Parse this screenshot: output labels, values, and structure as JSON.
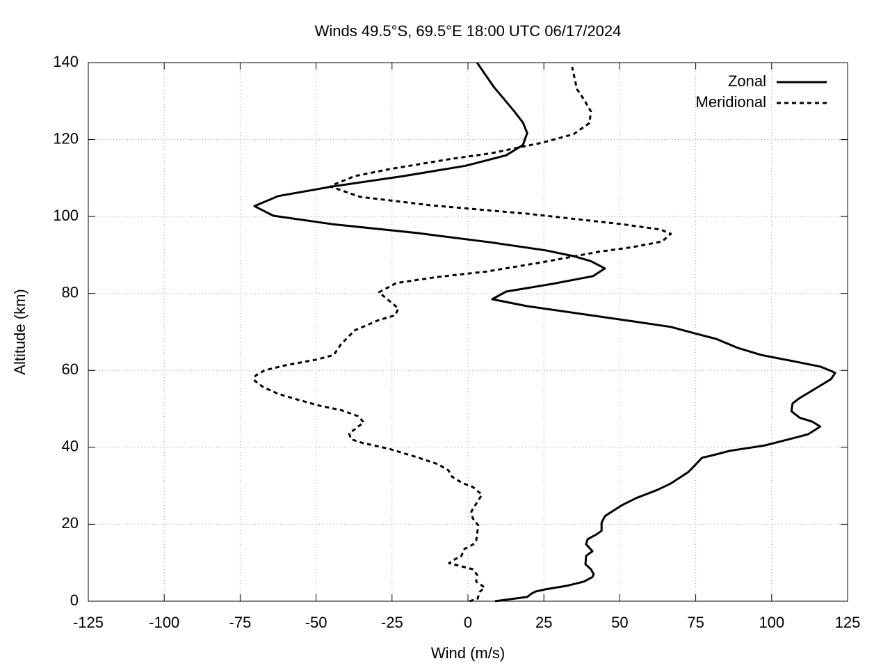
{
  "chart_data": {
    "type": "line",
    "title": "Winds 49.5°S, 69.5°E 18:00 UTC 06/17/2024",
    "xlabel": "Wind (m/s)",
    "ylabel": "Altitude (km)",
    "xlim": [
      -125,
      125
    ],
    "xticks": [
      -125,
      -100,
      -75,
      -50,
      -25,
      0,
      25,
      50,
      75,
      100,
      125
    ],
    "ylim": [
      0,
      140
    ],
    "yticks": [
      0,
      20,
      40,
      60,
      80,
      100,
      120,
      140
    ],
    "grid": true,
    "legend": "top-right",
    "series": [
      {
        "name": "Zonal",
        "color": "#000000",
        "dashed": false,
        "x": [
          8.9,
          19.5,
          21,
          22.2,
          25.6,
          32.5,
          38.2,
          41,
          41.4,
          40.5,
          38.7,
          38.9,
          41,
          38.9,
          39.4,
          42.4,
          44,
          44,
          45.1,
          47.4,
          50.8,
          55.4,
          62.3,
          66.8,
          70.7,
          72.6,
          73.7,
          76,
          77.1,
          79.9,
          86.3,
          97.8,
          105.8,
          112,
          116,
          113.3,
          109.2,
          106.5,
          106.9,
          109.2,
          119.5,
          120.9,
          120,
          116,
          107,
          96.6,
          89,
          81.7,
          75.3,
          66.8,
          53.1,
          19.5,
          8,
          12.6,
          27.9,
          41.2,
          45.1,
          40.5,
          34.8,
          25.6,
          7.3,
          -16.7,
          -44.6,
          -64.1,
          -70.3,
          -62.5,
          -44.6,
          -21.3,
          -0.7,
          12.6,
          18.1,
          19.5,
          18.1,
          15.3,
          8.5,
          3
        ],
        "y": [
          0,
          1.1,
          2,
          2.5,
          3.1,
          4,
          5.1,
          6.3,
          7,
          8.3,
          9.6,
          11.8,
          13,
          14.8,
          16.1,
          17.4,
          18.3,
          20.4,
          22.1,
          23.3,
          25,
          26.8,
          28.9,
          30.6,
          32.6,
          33.6,
          34.5,
          36.4,
          37.3,
          37.8,
          39.1,
          40.5,
          42.1,
          43.4,
          45.4,
          46.7,
          47.7,
          49.4,
          51.4,
          52.8,
          57.7,
          59.3,
          59.7,
          61,
          62.4,
          64,
          65.8,
          68.2,
          69.5,
          71.3,
          72.9,
          76.7,
          78.5,
          80.5,
          82.5,
          84.5,
          86.5,
          88.4,
          89.7,
          91.2,
          93.3,
          95.7,
          98,
          100.2,
          102.7,
          105.3,
          107.8,
          110.5,
          113.2,
          115.9,
          118.6,
          121.7,
          124.4,
          127.3,
          133.7,
          140
        ]
      },
      {
        "name": "Meridional",
        "color": "#000000",
        "dashed": true,
        "x": [
          0.5,
          3.2,
          3.9,
          5.5,
          2.7,
          3,
          1.6,
          -6.2,
          -4.1,
          -2.3,
          -1.1,
          1.6,
          2.7,
          3.4,
          1.6,
          1.1,
          4.6,
          1.6,
          -1.8,
          -5.3,
          -6.4,
          -9.8,
          -16.7,
          -25.9,
          -35,
          -38.5,
          -39.1,
          -34.3,
          -36.2,
          -41.9,
          -48.8,
          -55.6,
          -62.5,
          -67.5,
          -70.5,
          -70,
          -67,
          -60.2,
          -49.9,
          -44.2,
          -41.9,
          -37.3,
          -29.3,
          -24,
          -22.9,
          -29.3,
          -23.6,
          -9.8,
          6.2,
          24.5,
          42.8,
          53.8,
          63.9,
          66.8,
          63.4,
          50.8,
          19.9,
          -12.1,
          -35.5,
          -45.3,
          -44.2,
          -37.3,
          -25.9,
          -5.3,
          7.3,
          24.5,
          34.8,
          40,
          40.5,
          38.2,
          35.9,
          34.3
        ],
        "y": [
          0,
          0.7,
          2.4,
          3.6,
          5.1,
          6.9,
          8.3,
          9.9,
          11,
          11.6,
          13.6,
          14.7,
          15.6,
          19.7,
          21.5,
          23.3,
          27.7,
          29.7,
          30.7,
          32.4,
          34,
          35.6,
          37.4,
          39.6,
          41.2,
          42.1,
          43.6,
          46.5,
          48.1,
          49.7,
          50.8,
          52.3,
          53.9,
          55.7,
          57.5,
          58.6,
          60,
          61.3,
          62.8,
          64,
          66.7,
          70.4,
          73.1,
          74.3,
          76.1,
          80.3,
          82.7,
          84.3,
          85.7,
          88.1,
          90.8,
          92,
          93.5,
          95.5,
          96.6,
          98,
          100.7,
          102.9,
          105.1,
          107.8,
          108.3,
          110.5,
          112.3,
          115,
          116.4,
          119.2,
          121.4,
          124.3,
          127.3,
          130.4,
          133.1,
          138.9
        ]
      }
    ]
  }
}
